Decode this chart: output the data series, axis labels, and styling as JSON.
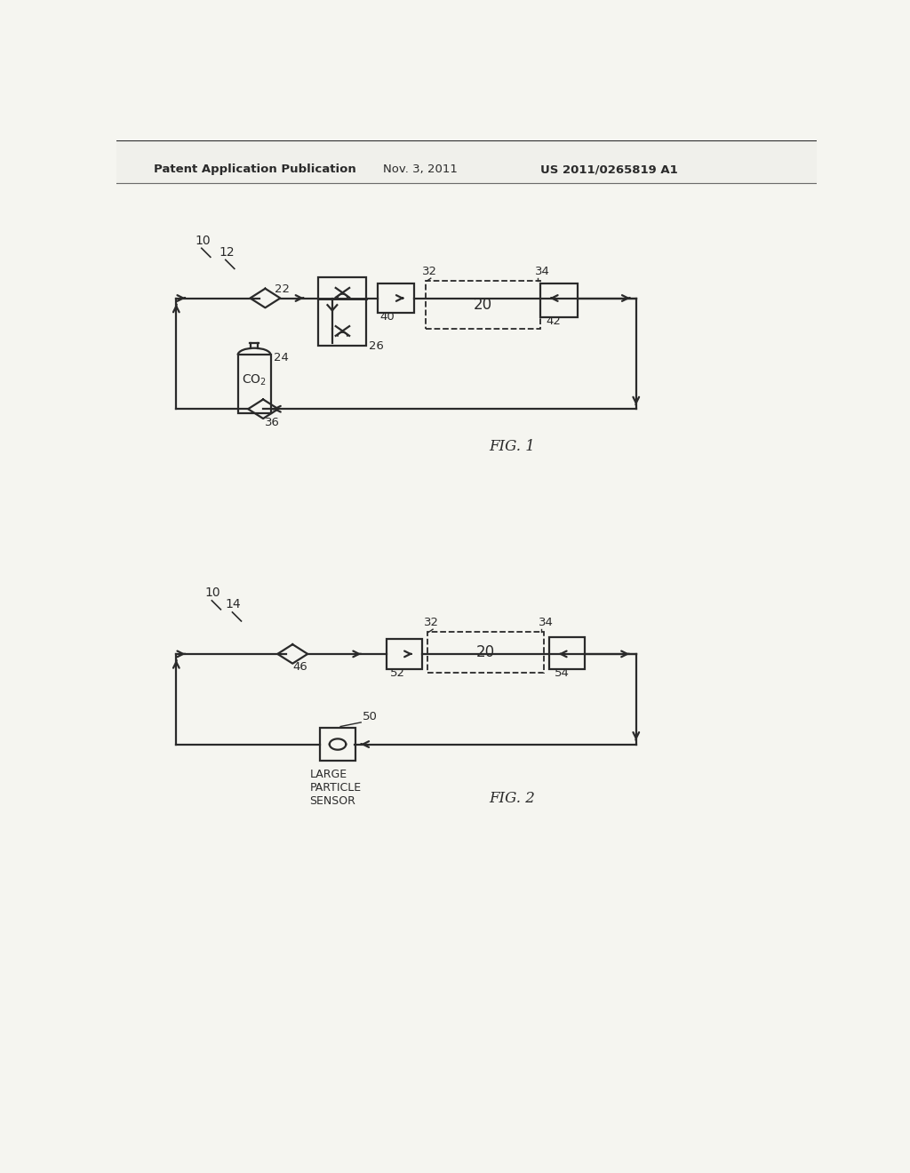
{
  "bg_color": "#f5f5f0",
  "line_color": "#2a2a2a",
  "header_left": "Patent Application Publication",
  "header_center": "Nov. 3, 2011",
  "header_right": "US 2011/0265819 A1",
  "fig1_label": "FIG. 1",
  "fig2_label": "FIG. 2"
}
